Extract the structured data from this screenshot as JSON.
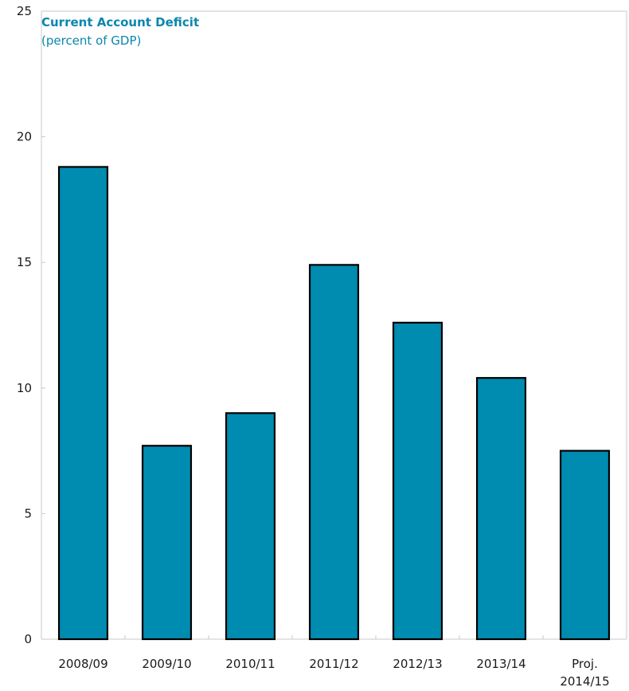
{
  "colors": {
    "bar_fill": "#008bb0",
    "bar_stroke": "#000000",
    "title": "#0b87ad",
    "axis": "#c8c8c8"
  },
  "chart_data": {
    "type": "bar",
    "title": "Current Account Deficit",
    "subtitle": "(percent of GDP)",
    "categories": [
      "2008/09",
      "2009/10",
      "2010/11",
      "2011/12",
      "2012/13",
      "2013/14",
      "Proj. 2014/15"
    ],
    "category_lines": [
      [
        "2008/09"
      ],
      [
        "2009/10"
      ],
      [
        "2010/11"
      ],
      [
        "2011/12"
      ],
      [
        "2012/13"
      ],
      [
        "2013/14"
      ],
      [
        "Proj.",
        "2014/15"
      ]
    ],
    "values": [
      18.8,
      7.7,
      9.0,
      14.9,
      12.6,
      10.4,
      7.5
    ],
    "ylim": [
      0,
      25
    ],
    "yticks": [
      0,
      5,
      10,
      15,
      20,
      25
    ],
    "xlabel": "",
    "ylabel": "",
    "grid": false,
    "legend": "none"
  }
}
